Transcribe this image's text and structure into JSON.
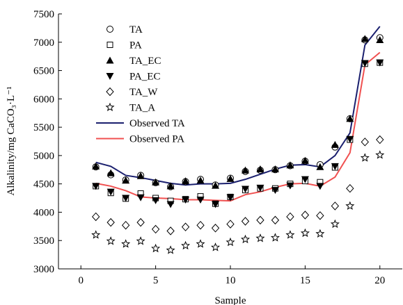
{
  "chart_data": {
    "type": "line",
    "xlabel": "Sample",
    "ylabel": "Alkalinity/mg CaCO₃·L⁻¹",
    "xlim": [
      -1.5,
      21.5
    ],
    "ylim": [
      3000,
      7500
    ],
    "xticks": [
      0,
      5,
      10,
      15,
      20
    ],
    "yticks": [
      3000,
      3500,
      4000,
      4500,
      5000,
      5500,
      6000,
      6500,
      7000,
      7500
    ],
    "grid": false,
    "legend_position": "top-left",
    "x": [
      1,
      2,
      3,
      4,
      5,
      6,
      7,
      8,
      9,
      10,
      11,
      12,
      13,
      14,
      15,
      16,
      17,
      18,
      19,
      20
    ],
    "series": [
      {
        "name": "TA",
        "kind": "marker",
        "marker": "open-circle",
        "values": [
          4800,
          4660,
          4570,
          4650,
          4520,
          4450,
          4540,
          4580,
          4480,
          4600,
          4720,
          4740,
          4750,
          4820,
          4900,
          4840,
          5150,
          5650,
          7040,
          7080
        ]
      },
      {
        "name": "PA",
        "kind": "marker",
        "marker": "open-square",
        "values": [
          4460,
          4340,
          4240,
          4330,
          4250,
          4200,
          4230,
          4280,
          4150,
          4270,
          4390,
          4420,
          4420,
          4500,
          4550,
          4530,
          4790,
          5280,
          6620,
          6640
        ]
      },
      {
        "name": "TA_EC",
        "kind": "marker",
        "marker": "filled-triangle-up",
        "values": [
          4810,
          4690,
          4560,
          4640,
          4530,
          4460,
          4550,
          4560,
          4470,
          4590,
          4740,
          4760,
          4760,
          4830,
          4910,
          4800,
          5190,
          5650,
          7060,
          7040
        ]
      },
      {
        "name": "PA_EC",
        "kind": "marker",
        "marker": "filled-triangle-down",
        "values": [
          4460,
          4360,
          4250,
          4260,
          4210,
          4140,
          4220,
          4220,
          4140,
          4260,
          4410,
          4430,
          4390,
          4470,
          4580,
          4460,
          4810,
          5290,
          6630,
          6640
        ]
      },
      {
        "name": "TA_W",
        "kind": "marker",
        "marker": "open-diamond",
        "values": [
          3920,
          3820,
          3770,
          3820,
          3700,
          3670,
          3740,
          3770,
          3720,
          3790,
          3840,
          3860,
          3860,
          3920,
          3950,
          3940,
          4110,
          4420,
          5240,
          5280
        ]
      },
      {
        "name": "TA_A",
        "kind": "marker",
        "marker": "open-star",
        "values": [
          3600,
          3490,
          3440,
          3490,
          3360,
          3330,
          3410,
          3440,
          3380,
          3470,
          3520,
          3540,
          3550,
          3600,
          3630,
          3620,
          3790,
          4110,
          4960,
          5010
        ]
      },
      {
        "name": "Observed TA",
        "kind": "line",
        "color": "#1a1f6e",
        "values": [
          4880,
          4810,
          4650,
          4610,
          4560,
          4510,
          4480,
          4500,
          4500,
          4510,
          4580,
          4670,
          4760,
          4830,
          4840,
          4800,
          5000,
          5400,
          6950,
          7280
        ]
      },
      {
        "name": "Observed PA",
        "kind": "line",
        "color": "#f05050",
        "values": [
          4510,
          4460,
          4380,
          4270,
          4250,
          4240,
          4220,
          4220,
          4210,
          4200,
          4310,
          4360,
          4440,
          4500,
          4510,
          4460,
          4620,
          5050,
          6600,
          6820
        ]
      }
    ]
  }
}
